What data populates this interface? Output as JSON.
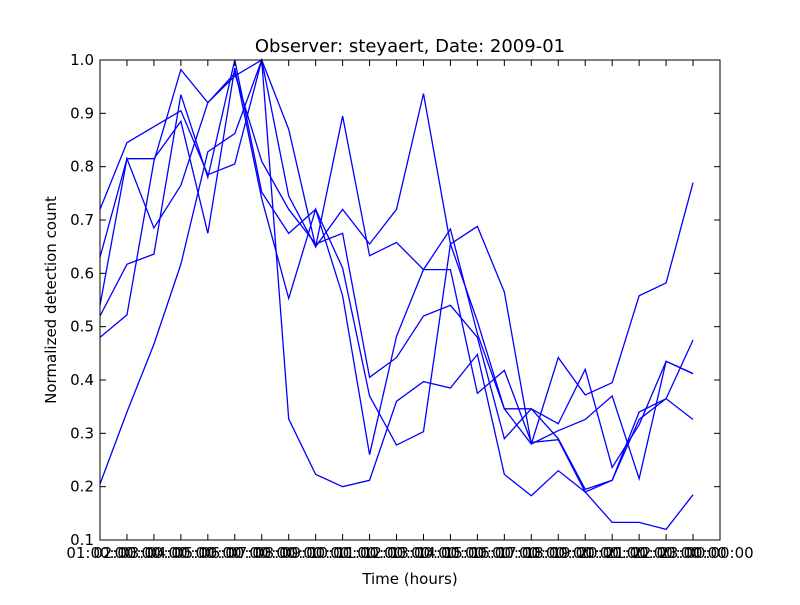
{
  "chart_data": {
    "type": "line",
    "title": "Observer: steyaert, Date: 2009-01",
    "xlabel": "Time (hours)",
    "ylabel": "Normalized detection count",
    "xlim": [
      1,
      24
    ],
    "ylim": [
      0.1,
      1.0
    ],
    "x_tick_values": [
      1,
      2,
      3,
      4,
      5,
      6,
      7,
      8,
      9,
      10,
      11,
      12,
      13,
      14,
      15,
      16,
      17,
      18,
      19,
      20,
      21,
      22,
      23,
      24
    ],
    "x_tick_labels": [
      "01:00:00",
      "02:00:00",
      "03:00:00",
      "04:00:00",
      "05:00:00",
      "06:00:00",
      "07:00:00",
      "08:00:00",
      "09:00:00",
      "10:00:00",
      "11:00:00",
      "12:00:00",
      "13:00:00",
      "14:00:00",
      "15:00:00",
      "16:00:00",
      "17:00:00",
      "18:00:00",
      "19:00:00",
      "20:00:00",
      "21:00:00",
      "22:00:00",
      "23:00:00",
      "00:00:00"
    ],
    "y_ticks": [
      0.1,
      0.2,
      0.3,
      0.4,
      0.5,
      0.6,
      0.7,
      0.8,
      0.9,
      1.0
    ],
    "y_tick_labels": [
      "0.1",
      "0.2",
      "0.3",
      "0.4",
      "0.5",
      "0.6",
      "0.7",
      "0.8",
      "0.9",
      "1.0"
    ],
    "grid": false,
    "legend": "none",
    "line_color": "#0000ff",
    "x": [
      1,
      2,
      3,
      4,
      5,
      6,
      7,
      8,
      9,
      10,
      11,
      12,
      13,
      14,
      15,
      16,
      17,
      18,
      19,
      20,
      21,
      22,
      23,
      24
    ],
    "series": [
      {
        "values": [
          0.72,
          0.845,
          0.875,
          0.905,
          0.785,
          0.805,
          1.0,
          0.87,
          0.65,
          0.72,
          0.655,
          0.72,
          0.937,
          0.655,
          0.688,
          0.565,
          0.28,
          0.442,
          0.372,
          0.395,
          0.558,
          0.582,
          0.77,
          null
        ]
      },
      {
        "values": [
          0.63,
          0.815,
          0.815,
          0.885,
          0.675,
          0.985,
          0.74,
          0.553,
          0.72,
          0.558,
          0.26,
          0.482,
          0.607,
          0.683,
          0.487,
          0.346,
          0.346,
          0.29,
          0.195,
          0.212,
          0.326,
          0.365,
          0.326,
          null
        ]
      },
      {
        "values": [
          0.54,
          0.815,
          0.685,
          0.765,
          0.92,
          0.975,
          0.81,
          0.72,
          0.655,
          0.675,
          0.405,
          0.442,
          0.52,
          0.54,
          0.48,
          0.29,
          0.346,
          0.318,
          0.42,
          0.236,
          0.316,
          0.435,
          0.412,
          null
        ]
      },
      {
        "values": [
          0.52,
          0.617,
          0.636,
          0.935,
          0.78,
          1.0,
          0.752,
          0.675,
          0.72,
          0.61,
          0.37,
          0.278,
          0.303,
          0.655,
          0.51,
          0.346,
          0.28,
          0.305,
          0.326,
          0.37,
          0.215,
          0.435,
          0.412,
          null
        ]
      },
      {
        "values": [
          0.205,
          0.34,
          0.467,
          0.617,
          0.828,
          0.862,
          1.0,
          0.327,
          0.223,
          0.2,
          0.212,
          0.36,
          0.397,
          0.385,
          0.448,
          0.223,
          0.183,
          0.23,
          0.19,
          0.133,
          0.133,
          0.12,
          0.185,
          null
        ]
      },
      {
        "values": [
          0.48,
          0.522,
          0.81,
          0.982,
          0.92,
          0.97,
          1.0,
          0.745,
          0.65,
          0.895,
          0.633,
          0.658,
          0.607,
          0.607,
          0.375,
          0.418,
          0.283,
          0.288,
          0.19,
          0.212,
          0.34,
          0.365,
          0.475,
          null
        ]
      }
    ]
  }
}
